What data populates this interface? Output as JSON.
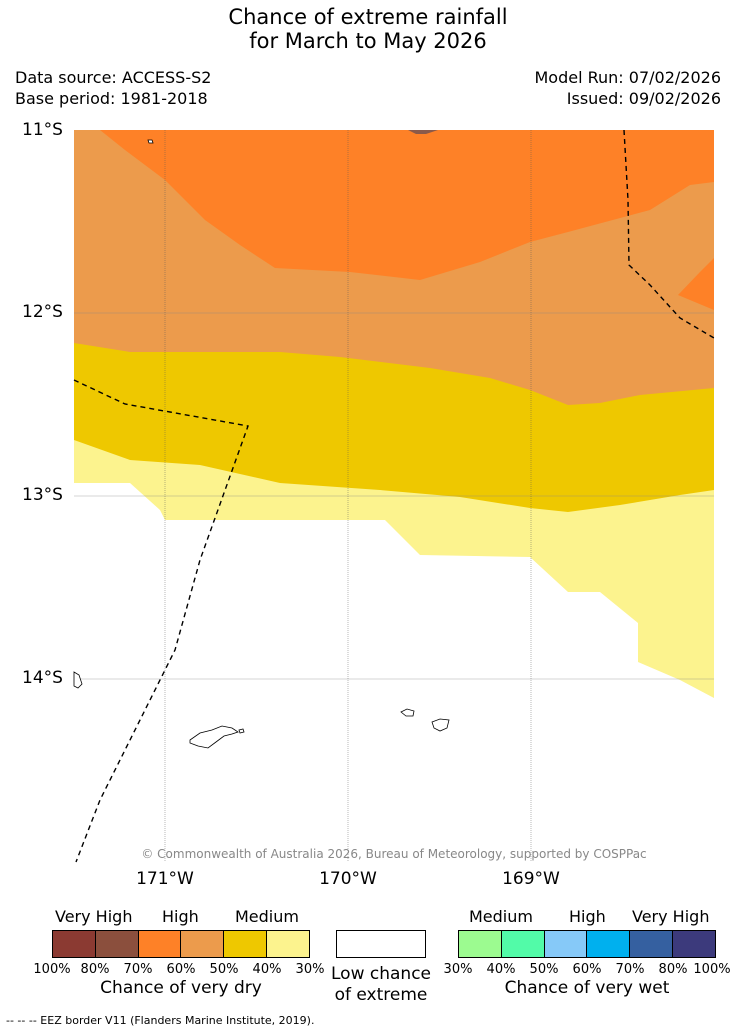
{
  "title": {
    "line1": "Chance of extreme rainfall",
    "line2": "for March to May 2026"
  },
  "meta": {
    "data_source": "Data source: ACCESS-S2",
    "base_period": "Base period: 1981-2018",
    "model_run": "Model Run: 07/02/2026",
    "issued": "Issued: 09/02/2026"
  },
  "map": {
    "lat_labels": [
      "11°S",
      "12°S",
      "13°S",
      "14°S"
    ],
    "lon_labels": [
      "171°W",
      "170°W",
      "169°W"
    ],
    "copyright": "© Commonwealth of Australia 2026, Bureau of Meteorology, supported by COSPPac",
    "region_colors": {
      "dry_70": "#fe8127",
      "dry_60": "#ec9b4c",
      "dry_50": "#eec800",
      "dry_40": "#fcf38e",
      "dry_80": "#8b5a4a"
    }
  },
  "legend": {
    "dry": {
      "headers": [
        "Very High",
        "High",
        "Medium"
      ],
      "colors": [
        "#8b3a32",
        "#8b4f3d",
        "#fe8127",
        "#ec9b4c",
        "#eec800",
        "#fcf38e"
      ],
      "ticks": [
        "100%",
        "80%",
        "70%",
        "60%",
        "50%",
        "40%",
        "30%"
      ],
      "title": "Chance of very dry"
    },
    "low": {
      "title_line1": "Low chance",
      "title_line2": "of extreme"
    },
    "wet": {
      "headers": [
        "Medium",
        "High",
        "Very High"
      ],
      "colors": [
        "#9cfb90",
        "#52fba8",
        "#86c9f8",
        "#00b0ee",
        "#3560a0",
        "#3c3a7c"
      ],
      "ticks": [
        "30%",
        "40%",
        "50%",
        "60%",
        "70%",
        "80%",
        "100%"
      ],
      "title": "Chance of very wet"
    }
  },
  "footer": "--  --  -- EEZ border V11 (Flanders Marine Institute, 2019)."
}
